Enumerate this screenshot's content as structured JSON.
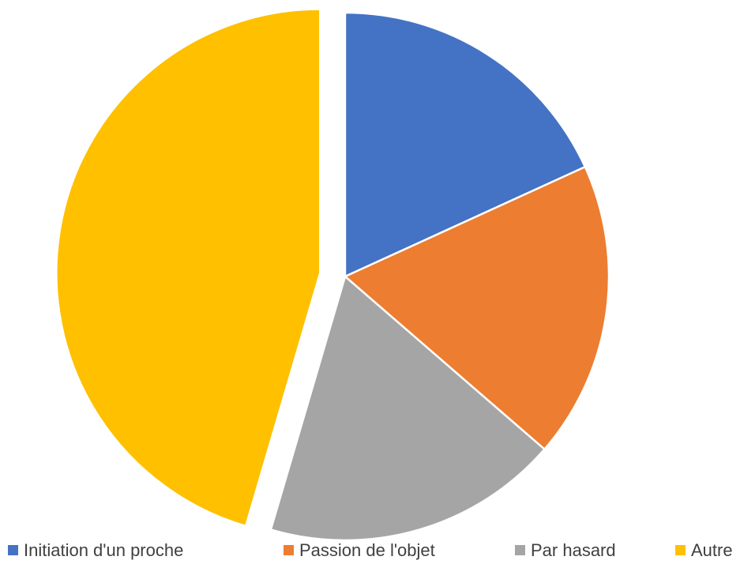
{
  "chart_data": {
    "type": "pie",
    "categories": [
      "Initiation d'un proche",
      "Passion de l'objet",
      "Par hasard",
      "Autre"
    ],
    "values": [
      2,
      2,
      2,
      5
    ],
    "colors": [
      "#4472c4",
      "#ed7d31",
      "#a5a5a5",
      "#ffc000"
    ],
    "exploded": [
      3
    ],
    "legend": "bottom"
  }
}
